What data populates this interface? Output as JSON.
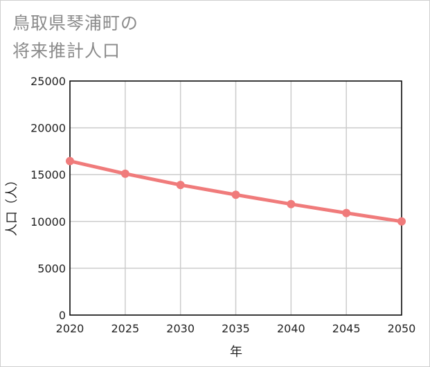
{
  "chart_data": {
    "type": "line",
    "title_lines": [
      "鳥取県琴浦町の",
      "将来推計人口"
    ],
    "xlabel": "年",
    "ylabel": "人口（人）",
    "x": [
      2020,
      2025,
      2030,
      2035,
      2040,
      2045,
      2050
    ],
    "x_tick_labels": [
      "2020",
      "2025",
      "2030",
      "2035",
      "2040",
      "2045",
      "2050"
    ],
    "series": [
      {
        "name": "人口",
        "values": [
          16450,
          15100,
          13900,
          12850,
          11850,
          10900,
          10000
        ],
        "color": "#f07b7b"
      }
    ],
    "y_ticks": [
      0,
      5000,
      10000,
      15000,
      20000,
      25000
    ],
    "y_tick_labels": [
      "0",
      "5000",
      "10000",
      "15000",
      "20000",
      "25000"
    ],
    "xlim": [
      2020,
      2050
    ],
    "ylim": [
      0,
      25000
    ],
    "grid": true
  }
}
